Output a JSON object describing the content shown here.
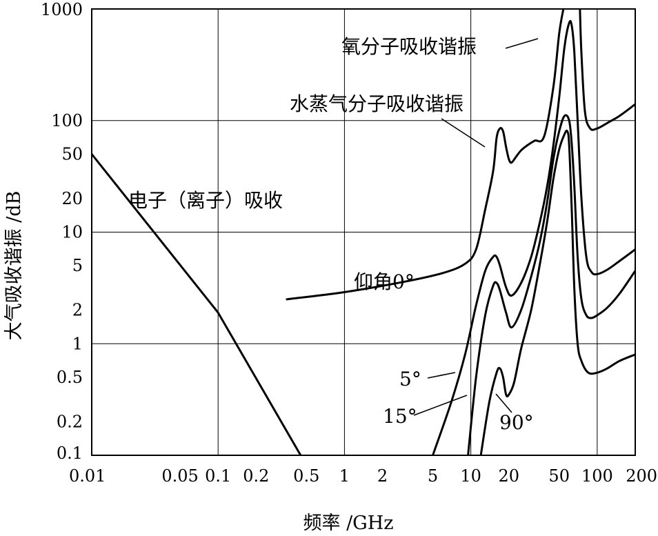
{
  "chart_data": {
    "type": "line",
    "xlabel": "频率 /GHz",
    "ylabel": "大气吸收谐振 /dB",
    "x_scale": "log",
    "y_scale": "log",
    "xlim": [
      0.01,
      200
    ],
    "ylim": [
      0.1,
      1000
    ],
    "grid": true,
    "x_ticks": [
      0.01,
      0.05,
      0.1,
      0.2,
      0.5,
      1,
      2,
      5,
      10,
      20,
      50,
      100,
      200
    ],
    "x_tick_labels": [
      "0.01",
      "0.05",
      "0.1",
      "0.2",
      "0.5",
      "1",
      "2",
      "5",
      "10",
      "20",
      "50",
      "100",
      "200"
    ],
    "y_ticks": [
      0.1,
      0.2,
      0.5,
      1,
      2,
      5,
      10,
      20,
      50,
      100,
      1000
    ],
    "y_tick_labels": [
      "0.1",
      "0.2",
      "0.5",
      "1",
      "2",
      "5",
      "10",
      "20",
      "50",
      "100",
      "1000"
    ],
    "x_grid": [
      0.1,
      1,
      10,
      100
    ],
    "y_grid": [
      1,
      10,
      100
    ],
    "series": [
      {
        "name": "电子（离子）吸收",
        "points": [
          [
            0.01,
            50
          ],
          [
            0.1,
            1.9
          ],
          [
            0.45,
            0.1
          ]
        ]
      },
      {
        "name": "仰角0°",
        "points": [
          [
            0.35,
            2.5
          ],
          [
            1,
            2.9
          ],
          [
            3,
            3.6
          ],
          [
            6,
            4.3
          ],
          [
            9,
            5.2
          ],
          [
            11,
            7
          ],
          [
            13,
            16
          ],
          [
            15,
            35
          ],
          [
            16,
            70
          ],
          [
            17,
            85
          ],
          [
            18,
            80
          ],
          [
            19,
            58
          ],
          [
            20,
            45
          ],
          [
            21,
            42
          ],
          [
            23,
            48
          ],
          [
            25,
            54
          ],
          [
            28,
            60
          ],
          [
            32,
            66
          ],
          [
            38,
            72
          ],
          [
            45,
            200
          ],
          [
            50,
            600
          ],
          [
            54,
            1000
          ]
        ]
      },
      {
        "name": "仰角0°",
        "points": [
          [
            73,
            1000
          ],
          [
            75,
            400
          ],
          [
            80,
            120
          ],
          [
            88,
            85
          ],
          [
            100,
            85
          ],
          [
            120,
            95
          ],
          [
            150,
            110
          ],
          [
            200,
            140
          ]
        ]
      },
      {
        "name": "5°",
        "points": [
          [
            5,
            0.1
          ],
          [
            7,
            0.3
          ],
          [
            9,
            0.8
          ],
          [
            11,
            2.2
          ],
          [
            13,
            4.5
          ],
          [
            15,
            6
          ],
          [
            16,
            6
          ],
          [
            17,
            5
          ],
          [
            19,
            3.2
          ],
          [
            21,
            2.7
          ],
          [
            25,
            3.5
          ],
          [
            30,
            6
          ],
          [
            35,
            12
          ],
          [
            40,
            25
          ],
          [
            45,
            60
          ],
          [
            50,
            160
          ],
          [
            55,
            450
          ],
          [
            60,
            750
          ],
          [
            63,
            700
          ],
          [
            66,
            400
          ],
          [
            70,
            100
          ],
          [
            75,
            20
          ],
          [
            82,
            6
          ],
          [
            90,
            4.4
          ],
          [
            100,
            4.2
          ],
          [
            120,
            4.6
          ],
          [
            150,
            5.5
          ],
          [
            200,
            7
          ]
        ]
      },
      {
        "name": "15°",
        "points": [
          [
            9.5,
            0.1
          ],
          [
            11,
            0.5
          ],
          [
            13,
            1.8
          ],
          [
            15,
            3.3
          ],
          [
            16,
            3.5
          ],
          [
            17,
            3
          ],
          [
            19,
            1.9
          ],
          [
            21,
            1.4
          ],
          [
            25,
            2
          ],
          [
            30,
            4
          ],
          [
            35,
            8
          ],
          [
            40,
            18
          ],
          [
            45,
            45
          ],
          [
            50,
            80
          ],
          [
            55,
            110
          ],
          [
            60,
            100
          ],
          [
            63,
            60
          ],
          [
            66,
            25
          ],
          [
            70,
            6
          ],
          [
            75,
            2.5
          ],
          [
            82,
            1.8
          ],
          [
            90,
            1.7
          ],
          [
            100,
            1.8
          ],
          [
            120,
            2.1
          ],
          [
            150,
            2.8
          ],
          [
            200,
            4.5
          ]
        ]
      },
      {
        "name": "90°",
        "points": [
          [
            12,
            0.1
          ],
          [
            14,
            0.3
          ],
          [
            16,
            0.55
          ],
          [
            17,
            0.6
          ],
          [
            18,
            0.5
          ],
          [
            19,
            0.35
          ],
          [
            20,
            0.35
          ],
          [
            22,
            0.45
          ],
          [
            25,
            0.9
          ],
          [
            30,
            2
          ],
          [
            35,
            5
          ],
          [
            40,
            12
          ],
          [
            45,
            30
          ],
          [
            50,
            55
          ],
          [
            55,
            75
          ],
          [
            58,
            80
          ],
          [
            60,
            60
          ],
          [
            63,
            15
          ],
          [
            66,
            3
          ],
          [
            70,
            1
          ],
          [
            75,
            0.7
          ],
          [
            85,
            0.55
          ],
          [
            100,
            0.55
          ],
          [
            120,
            0.6
          ],
          [
            150,
            0.7
          ],
          [
            200,
            0.8
          ]
        ]
      }
    ],
    "annotations": [
      {
        "text": "电子（离子）吸收"
      },
      {
        "text": "氧分子吸收谐振"
      },
      {
        "text": "水蒸气分子吸收谐振"
      },
      {
        "text": "仰角0°"
      },
      {
        "text": "5°"
      },
      {
        "text": "15°"
      },
      {
        "text": "90°"
      }
    ]
  }
}
